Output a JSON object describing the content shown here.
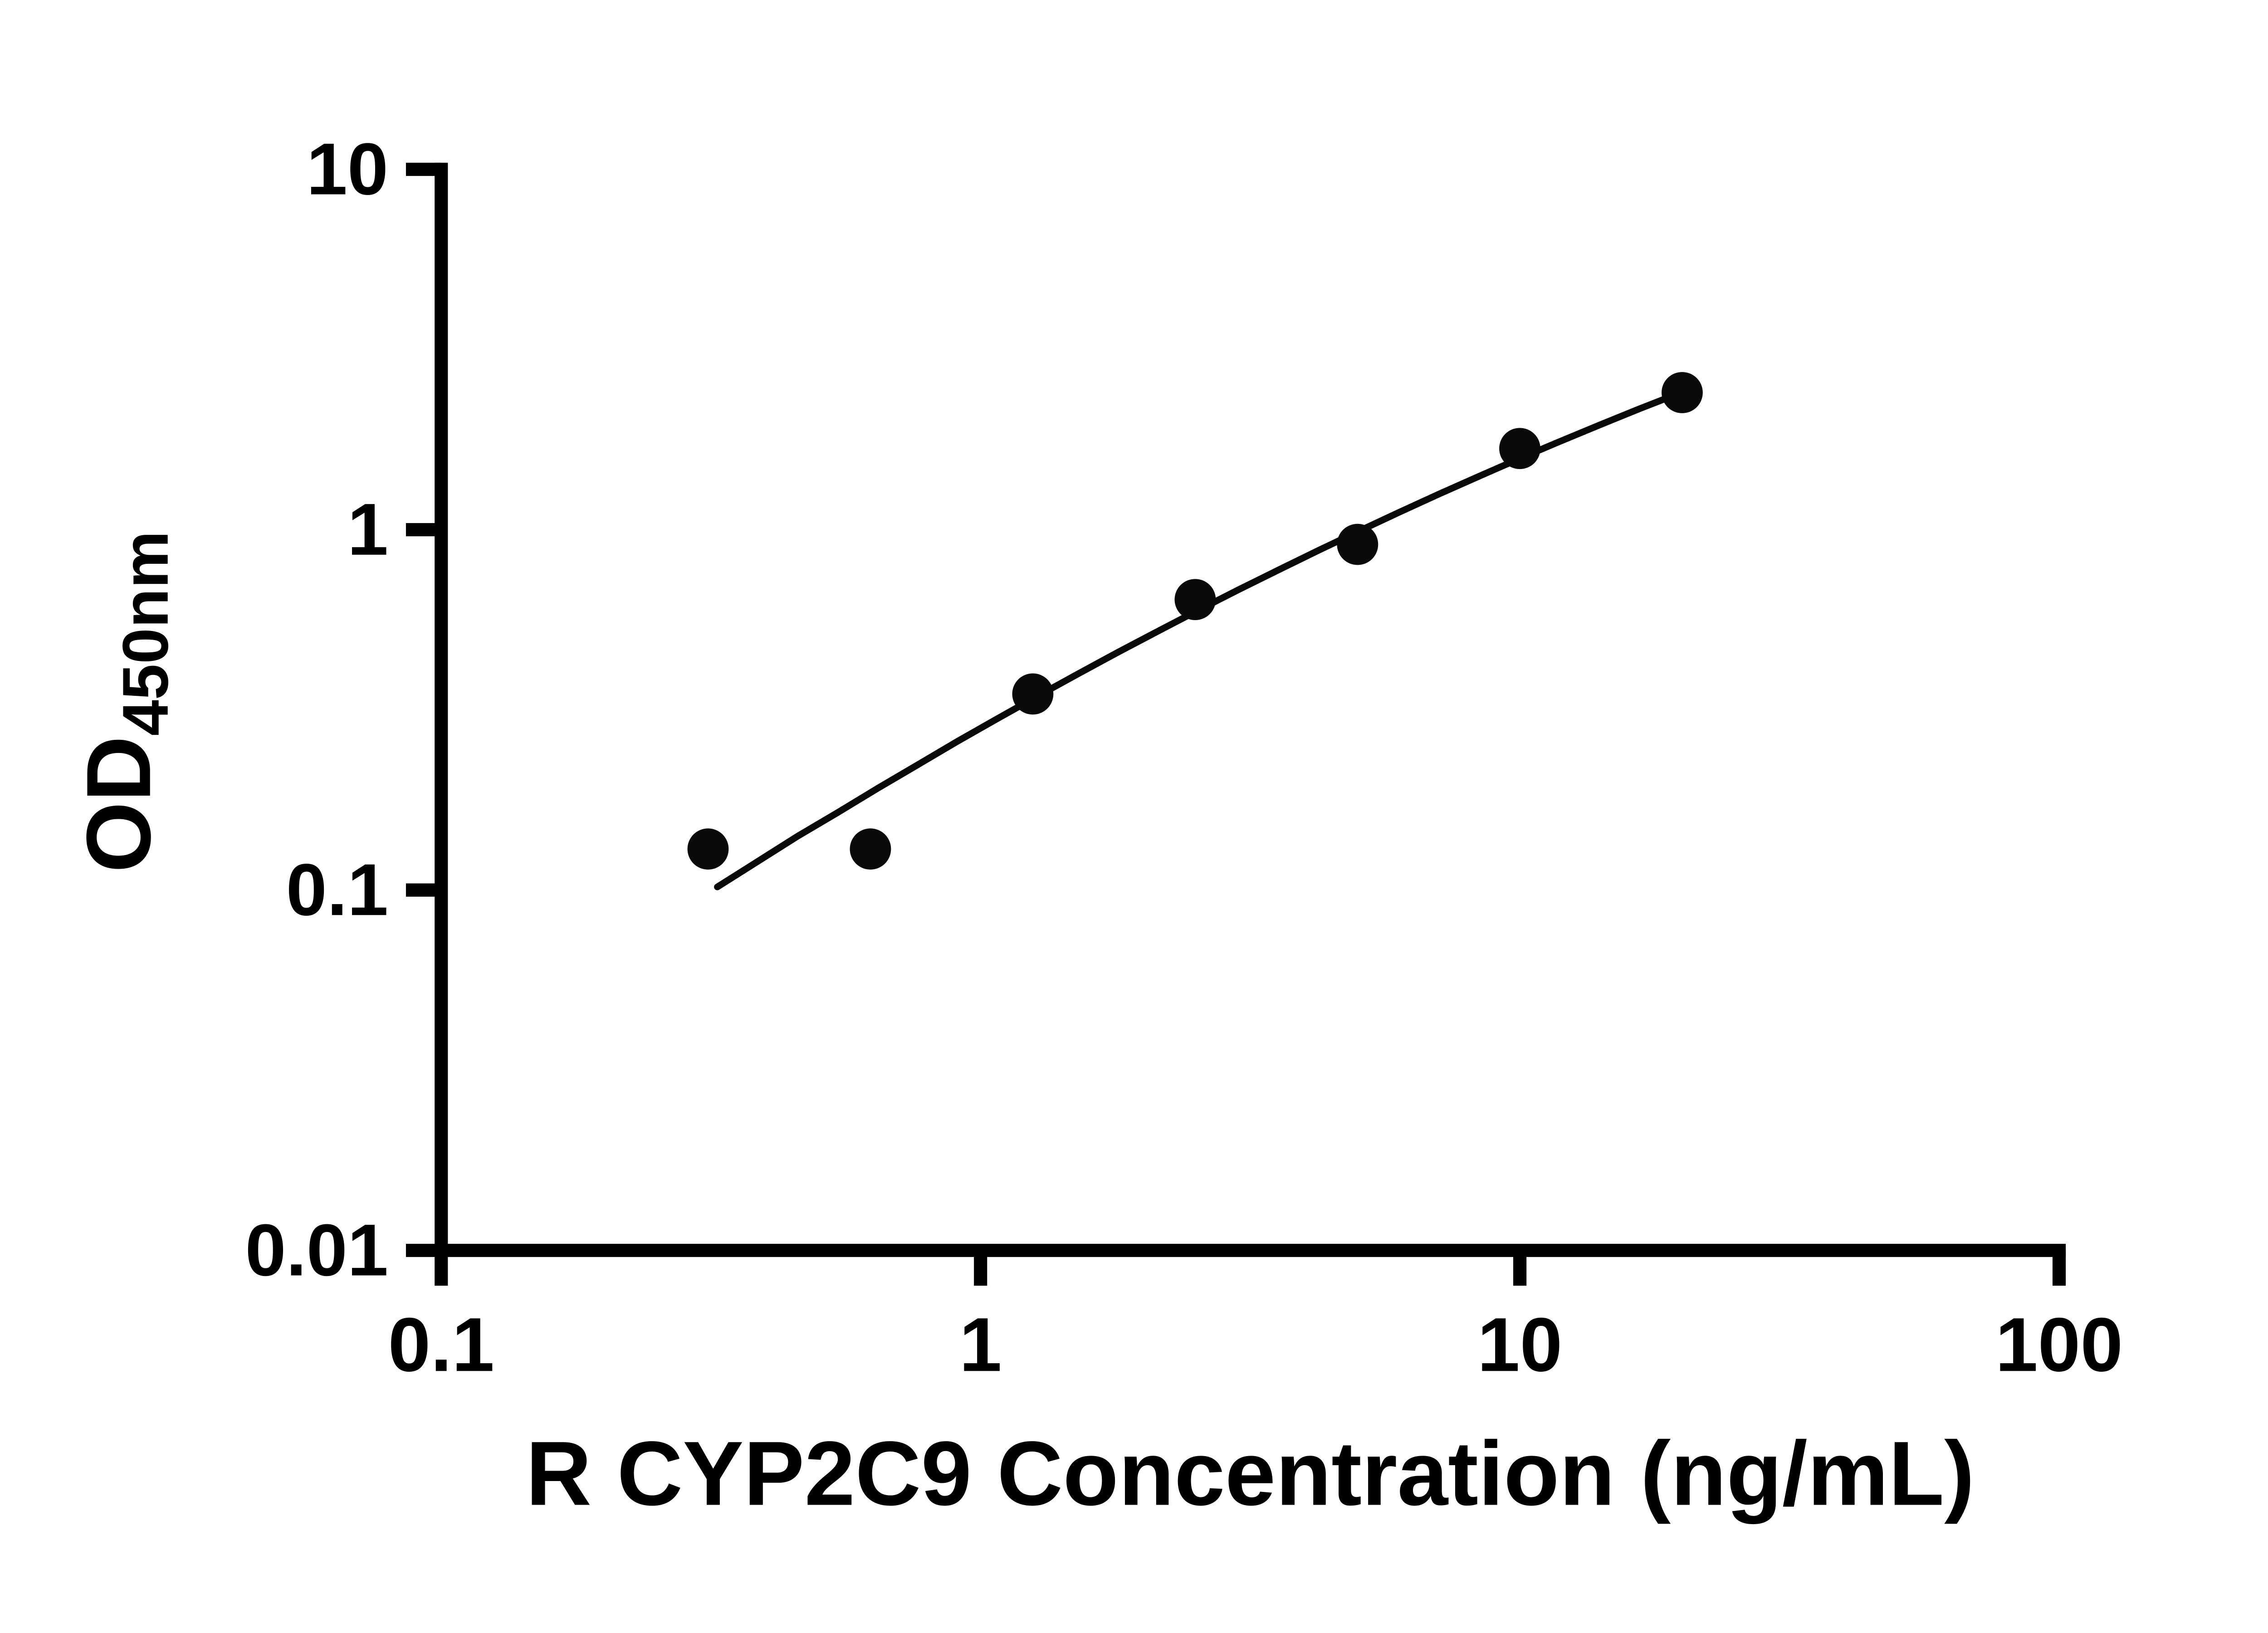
{
  "chart_data": {
    "type": "scatter",
    "title": "",
    "xlabel": "R CYP2C9 Concentration (ng/mL)",
    "ylabel_main": "OD",
    "ylabel_sub": "450nm",
    "x_scale": "log10",
    "y_scale": "log10",
    "xlim": [
      0.1,
      100
    ],
    "ylim": [
      0.01,
      10
    ],
    "grid": false,
    "legend": "none",
    "x_ticks": [
      {
        "value": 0.1,
        "label": "0.1"
      },
      {
        "value": 1,
        "label": "1"
      },
      {
        "value": 10,
        "label": "10"
      },
      {
        "value": 100,
        "label": "100"
      }
    ],
    "y_ticks": [
      {
        "value": 10,
        "label": "10"
      },
      {
        "value": 1,
        "label": "1"
      },
      {
        "value": 0.1,
        "label": "0.1"
      },
      {
        "value": 0.01,
        "label": "0.01"
      }
    ],
    "points": {
      "series_name": "standard-points",
      "x": [
        0.3125,
        0.625,
        1.25,
        2.5,
        5,
        10,
        20
      ],
      "y": [
        0.13,
        0.13,
        0.35,
        0.64,
        0.91,
        1.68,
        2.4
      ]
    },
    "fit_curve": {
      "series_name": "fit-line",
      "x": [
        0.325,
        0.386,
        0.458,
        0.543,
        0.646,
        0.766,
        0.908,
        1.079,
        1.279,
        1.517,
        1.803,
        2.138,
        2.535,
        3.013,
        3.573,
        4.236,
        5.035,
        5.97,
        7.079,
        8.414,
        9.977,
        11.83,
        14.06,
        16.67,
        19.82
      ],
      "y": [
        0.102,
        0.12,
        0.141,
        0.164,
        0.192,
        0.223,
        0.259,
        0.3,
        0.346,
        0.398,
        0.458,
        0.524,
        0.598,
        0.682,
        0.774,
        0.877,
        0.992,
        1.117,
        1.255,
        1.408,
        1.574,
        1.754,
        1.953,
        2.165,
        2.397
      ]
    },
    "colors": {
      "axis": "#000000",
      "points": "#0a0a0a",
      "line": "#0a0a0a",
      "background": "#ffffff"
    }
  }
}
